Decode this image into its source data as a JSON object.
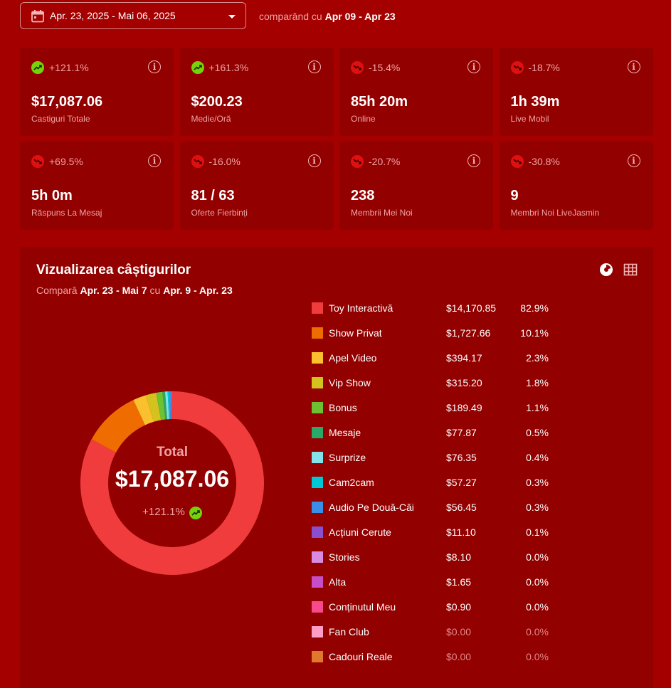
{
  "header": {
    "date_range": "Apr. 23, 2025 - Mai 06, 2025",
    "compare_prefix": "comparând cu",
    "compare_range": "Apr 09 - Apr 23"
  },
  "stats": [
    {
      "pct": "+121.1%",
      "trend": "up",
      "value": "$17,087.06",
      "label": "Castiguri Totale"
    },
    {
      "pct": "+161.3%",
      "trend": "up",
      "value": "$200.23",
      "label": "Medie/Oră"
    },
    {
      "pct": "-15.4%",
      "trend": "down",
      "value": "85h 20m",
      "label": "Online"
    },
    {
      "pct": "-18.7%",
      "trend": "down",
      "value": "1h 39m",
      "label": "Live Mobil"
    },
    {
      "pct": "+69.5%",
      "trend": "down",
      "value": "5h 0m",
      "label": "Răspuns La Mesaj"
    },
    {
      "pct": "-16.0%",
      "trend": "down",
      "value": "81 / 63",
      "label": "Oferte Fierbinți"
    },
    {
      "pct": "-20.7%",
      "trend": "down",
      "value": "238",
      "label": "Membrii Mei Noi"
    },
    {
      "pct": "-30.8%",
      "trend": "down",
      "value": "9",
      "label": "Membri Noi LiveJasmin"
    }
  ],
  "panel": {
    "title": "Vizualizarea câștigurilor",
    "sub_prefix": "Compară",
    "sub_range1": "Apr. 23 - Mai 7",
    "sub_mid": "cu",
    "sub_range2": "Apr. 9 - Apr. 23",
    "total_label": "Total",
    "total_value": "$17,087.06",
    "total_pct": "+121.1%"
  },
  "colors": {
    "background": "#a40000",
    "card": "#920000",
    "trend_up": "#76d30b",
    "trend_down": "#e01010"
  },
  "chart_data": {
    "type": "pie",
    "categories": [
      "Toy Interactivă",
      "Show Privat",
      "Apel Video",
      "Vip Show",
      "Bonus",
      "Mesaje",
      "Surprize",
      "Cam2cam",
      "Audio Pe Două-Căi",
      "Acțiuni Cerute",
      "Stories",
      "Alta",
      "Conținutul Meu",
      "Fan Club",
      "Cadouri Reale"
    ],
    "amounts": [
      "$14,170.85",
      "$1,727.66",
      "$394.17",
      "$315.20",
      "$189.49",
      "$77.87",
      "$76.35",
      "$57.27",
      "$56.45",
      "$11.10",
      "$8.10",
      "$1.65",
      "$0.90",
      "$0.00",
      "$0.00"
    ],
    "percent_labels": [
      "82.9%",
      "10.1%",
      "2.3%",
      "1.8%",
      "1.1%",
      "0.5%",
      "0.4%",
      "0.3%",
      "0.3%",
      "0.1%",
      "0.0%",
      "0.0%",
      "0.0%",
      "0.0%",
      "0.0%"
    ],
    "values": [
      14170.85,
      1727.66,
      394.17,
      315.2,
      189.49,
      77.87,
      76.35,
      57.27,
      56.45,
      11.1,
      8.1,
      1.65,
      0.9,
      0.0,
      0.0
    ],
    "colors": [
      "#f03c3c",
      "#ef6c00",
      "#fbc02d",
      "#d4c21f",
      "#6cc230",
      "#2aa86a",
      "#84e3ea",
      "#00c8d4",
      "#3b8ee8",
      "#8a4fcf",
      "#d88be0",
      "#c84ec9",
      "#f74a8a",
      "#ff9ec4",
      "#e0782e"
    ]
  }
}
